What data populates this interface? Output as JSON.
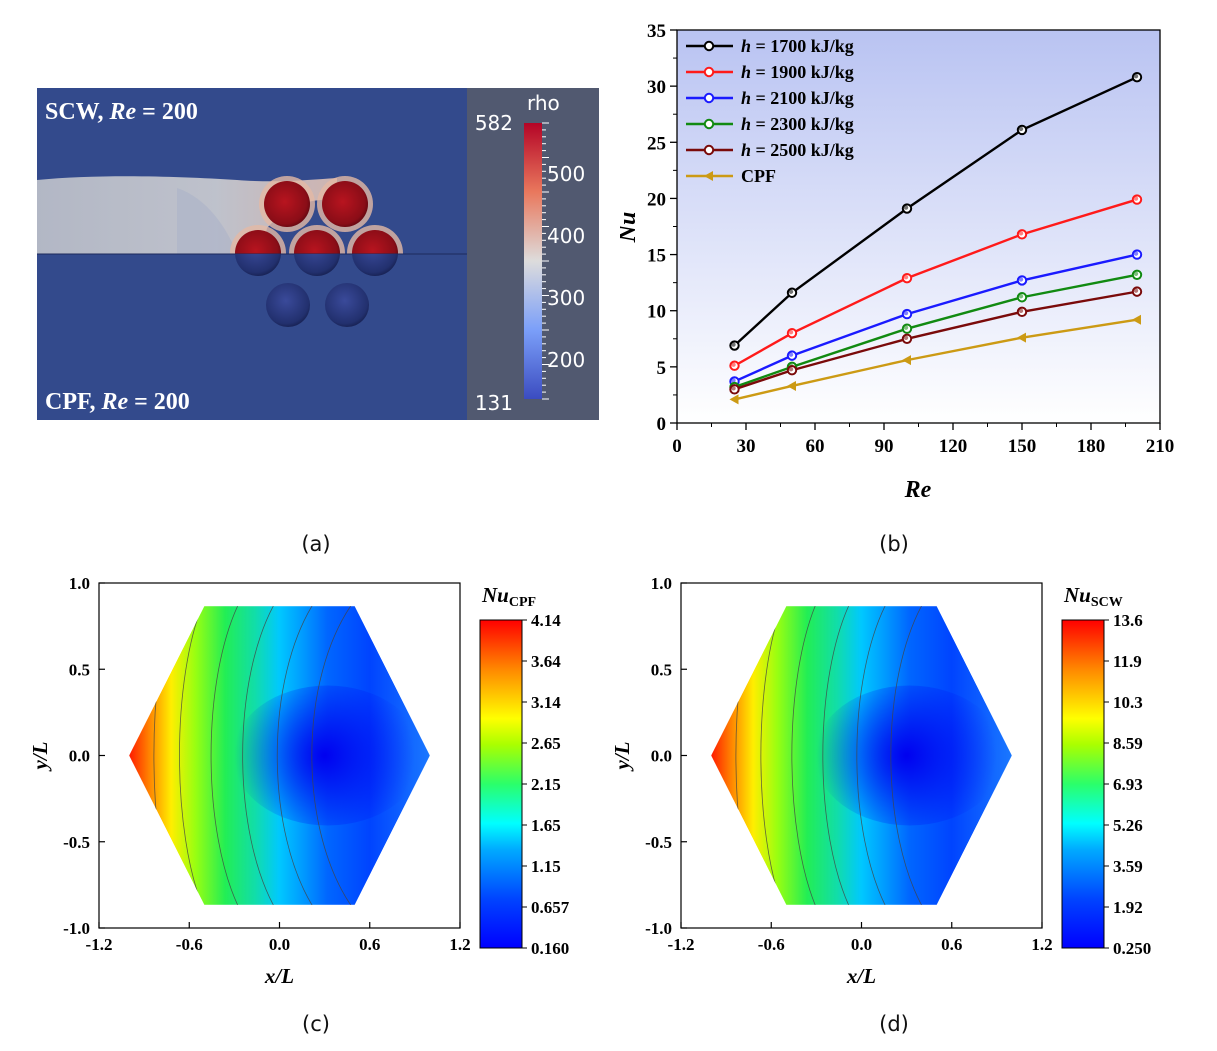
{
  "captions": [
    "(a)",
    "(b)",
    "(c)",
    "(d)"
  ],
  "panel_a": {
    "label_top": "SCW, ",
    "label_top_italic": "Re",
    "label_top_value": " = 200",
    "label_bottom": "CPF, ",
    "label_bottom_italic": "Re",
    "label_bottom_value": " = 200",
    "colorbar_title": "rho",
    "colorbar_max": "582",
    "colorbar_min": "131",
    "colorbar_ticks": [
      "500",
      "400",
      "300",
      "200"
    ],
    "colors": {
      "background": "#334a8c",
      "bar_panel": "#515970",
      "cylinder": "#a3141f"
    }
  },
  "chart_data": [
    {
      "type": "line",
      "ylabel": "Nu",
      "xlabel": "Re",
      "xlim": [
        0,
        210
      ],
      "ylim": [
        0,
        35
      ],
      "xticks": [
        0,
        30,
        60,
        90,
        120,
        150,
        180,
        210
      ],
      "yticks": [
        0,
        5,
        10,
        15,
        20,
        25,
        30,
        35
      ],
      "legend_position": "top-left",
      "background_gradient": [
        "#b9c3f2",
        "#ffffff"
      ],
      "x": [
        25,
        50,
        100,
        150,
        200
      ],
      "series": [
        {
          "name": "h = 1700 kJ/kg",
          "name_italic": "h",
          "name_rest": " = 1700 kJ/kg",
          "color": "#000000",
          "marker": "circle",
          "values": [
            6.9,
            11.6,
            19.1,
            26.1,
            30.8
          ]
        },
        {
          "name": "h = 1900 kJ/kg",
          "name_italic": "h",
          "name_rest": " = 1900 kJ/kg",
          "color": "#ff1a1a",
          "marker": "circle",
          "values": [
            5.1,
            8.0,
            12.9,
            16.8,
            19.9
          ]
        },
        {
          "name": "h = 2100 kJ/kg",
          "name_italic": "h",
          "name_rest": " = 2100 kJ/kg",
          "color": "#1a1aff",
          "marker": "circle",
          "values": [
            3.7,
            6.0,
            9.7,
            12.7,
            15.0
          ]
        },
        {
          "name": "h = 2300 kJ/kg",
          "name_italic": "h",
          "name_rest": " = 2300 kJ/kg",
          "color": "#118a11",
          "marker": "circle",
          "values": [
            3.2,
            5.0,
            8.4,
            11.2,
            13.2
          ]
        },
        {
          "name": "h = 2500 kJ/kg",
          "name_italic": "h",
          "name_rest": " = 2500 kJ/kg",
          "color": "#7a0a0a",
          "marker": "circle",
          "values": [
            3.0,
            4.7,
            7.5,
            9.9,
            11.7
          ]
        },
        {
          "name": "CPF",
          "name_italic": "",
          "name_rest": "CPF",
          "color": "#cc9a14",
          "marker": "triangle-left",
          "values": [
            2.1,
            3.3,
            5.6,
            7.6,
            9.2
          ]
        }
      ]
    },
    {
      "type": "heatmap",
      "xlabel": "x/L",
      "ylabel": "y/L",
      "xlim": [
        -1.2,
        1.2
      ],
      "ylim": [
        -1.0,
        1.0
      ],
      "xticks": [
        "-1.2",
        "-0.6",
        "0.0",
        "0.6",
        "1.2"
      ],
      "yticks": [
        "1.0",
        "0.5",
        "0.0",
        "-0.5",
        "-1.0"
      ],
      "colorbar_title_italic": "Nu",
      "colorbar_title_sub": "CPF",
      "colorbar_ticks": [
        "4.14",
        "3.64",
        "3.14",
        "2.65",
        "2.15",
        "1.65",
        "1.15",
        "0.657",
        "0.160"
      ],
      "colorbar_range": [
        0.16,
        4.14
      ]
    },
    {
      "type": "heatmap",
      "xlabel": "x/L",
      "ylabel": "y/L",
      "xlim": [
        -1.2,
        1.2
      ],
      "ylim": [
        -1.0,
        1.0
      ],
      "xticks": [
        "-1.2",
        "-0.6",
        "0.0",
        "0.6",
        "1.2"
      ],
      "yticks": [
        "1.0",
        "0.5",
        "0.0",
        "-0.5",
        "-1.0"
      ],
      "colorbar_title_italic": "Nu",
      "colorbar_title_sub": "SCW",
      "colorbar_ticks": [
        "13.6",
        "11.9",
        "10.3",
        "8.59",
        "6.93",
        "5.26",
        "3.59",
        "1.92",
        "0.250"
      ],
      "colorbar_range": [
        0.25,
        13.6
      ]
    }
  ]
}
